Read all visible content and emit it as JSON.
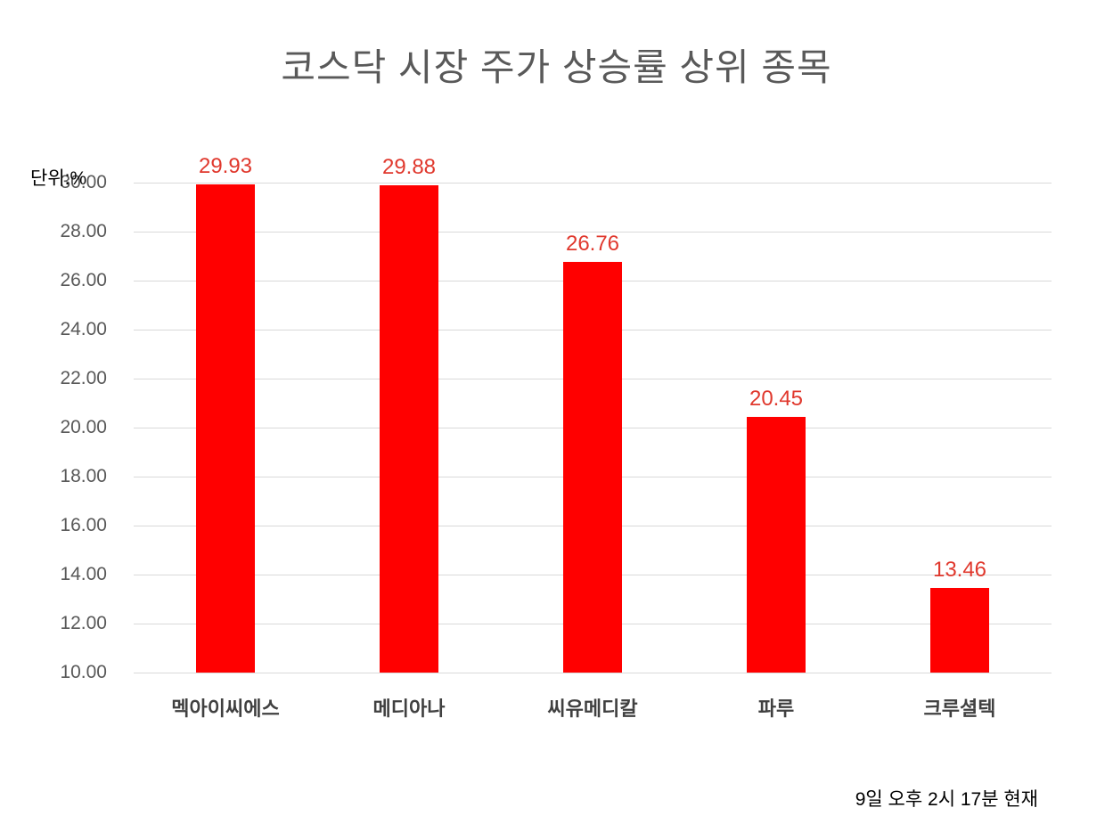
{
  "chart": {
    "title": "코스닥 시장 주가 상승률 상위 종목",
    "unit_label": "단위:%",
    "timestamp": "9일 오후 2시 17분 현재"
  },
  "chart_data": {
    "type": "bar",
    "title": "코스닥 시장 주가 상승률 상위 종목",
    "categories": [
      "멕아이씨에스",
      "메디아나",
      "씨유메디칼",
      "파루",
      "크루셜텍"
    ],
    "values": [
      29.93,
      29.88,
      26.76,
      20.45,
      13.46
    ],
    "data_labels": [
      "29.93",
      "29.88",
      "26.76",
      "20.45",
      "13.46"
    ],
    "unit": "%",
    "xlabel": "",
    "ylabel": "",
    "ylim": [
      10,
      30
    ],
    "ytick_step": 2,
    "ytick_labels": [
      "30.00",
      "28.00",
      "26.00",
      "24.00",
      "22.00",
      "20.00",
      "18.00",
      "16.00",
      "14.00",
      "12.00",
      "10.00"
    ],
    "grid": true,
    "legend": false,
    "annotation": "9일 오후 2시 17분 현재",
    "colors": {
      "bar": "#ff0000",
      "value_label": "#e0382d",
      "title_text": "#595959",
      "axis_text": "#595959",
      "category_text": "#404040",
      "gridline": "#d9d9d9"
    }
  }
}
